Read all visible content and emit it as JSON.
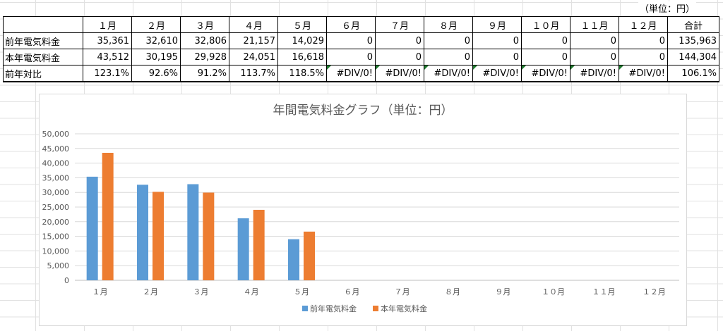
{
  "unit_note": "（単位：円）",
  "table": {
    "corner": "",
    "headers": [
      "１月",
      "２月",
      "３月",
      "４月",
      "５月",
      "６月",
      "７月",
      "８月",
      "９月",
      "１０月",
      "１１月",
      "１２月",
      "合計"
    ],
    "rows": [
      {
        "label": "前年電気料金",
        "cells": [
          "35,361",
          "32,610",
          "32,806",
          "21,157",
          "14,029",
          "0",
          "0",
          "0",
          "0",
          "0",
          "0",
          "0",
          "135,963"
        ]
      },
      {
        "label": "本年電気料金",
        "cells": [
          "43,512",
          "30,195",
          "29,928",
          "24,051",
          "16,618",
          "0",
          "0",
          "0",
          "0",
          "0",
          "0",
          "0",
          "144,304"
        ]
      },
      {
        "label": "前年対比",
        "cells": [
          "123.1%",
          "92.6%",
          "91.2%",
          "113.7%",
          "118.5%",
          "#DIV/0!",
          "#DIV/0!",
          "#DIV/0!",
          "#DIV/0!",
          "#DIV/0!",
          "#DIV/0!",
          "#DIV/0!",
          "106.1%"
        ]
      }
    ]
  },
  "chart_data": {
    "type": "bar",
    "title": "年間電気料金グラフ（単位：円）",
    "categories": [
      "１月",
      "２月",
      "３月",
      "４月",
      "５月",
      "６月",
      "７月",
      "８月",
      "９月",
      "１０月",
      "１１月",
      "１２月"
    ],
    "series": [
      {
        "name": "前年電気料金",
        "color": "#5b9bd5",
        "values": [
          35361,
          32610,
          32806,
          21157,
          14029,
          0,
          0,
          0,
          0,
          0,
          0,
          0
        ]
      },
      {
        "name": "本年電気料金",
        "color": "#ed7d31",
        "values": [
          43512,
          30195,
          29928,
          24051,
          16618,
          0,
          0,
          0,
          0,
          0,
          0,
          0
        ]
      }
    ],
    "ylim": [
      0,
      50000
    ],
    "yticks": [
      "0",
      "5,000",
      "10,000",
      "15,000",
      "20,000",
      "25,000",
      "30,000",
      "35,000",
      "40,000",
      "45,000",
      "50,000"
    ],
    "grid": true,
    "legend": "bottom"
  }
}
